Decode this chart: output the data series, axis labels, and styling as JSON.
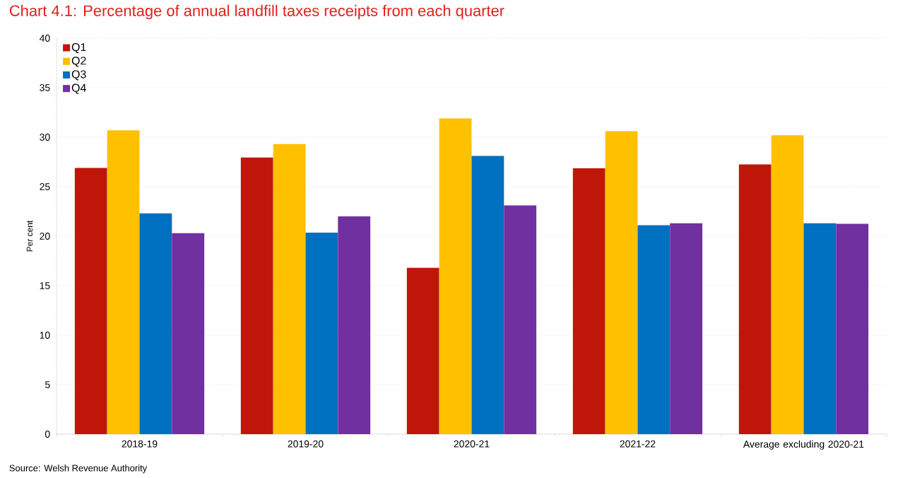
{
  "chart_data": {
    "type": "bar",
    "title": "Chart 4.1: Percentage of annual landfill taxes receipts from each quarter",
    "ylabel": "Per cent",
    "categories": [
      "2018-19",
      "2019-20",
      "2020-21",
      "2021-22",
      "Average excluding 2020-21"
    ],
    "series": [
      {
        "name": "Q1",
        "color": "#c0160a",
        "values": [
          26.9,
          27.95,
          16.8,
          26.85,
          27.25
        ]
      },
      {
        "name": "Q2",
        "color": "#ffc000",
        "values": [
          30.7,
          29.3,
          31.9,
          30.6,
          30.2
        ]
      },
      {
        "name": "Q3",
        "color": "#0070c0",
        "values": [
          22.3,
          20.35,
          28.1,
          21.1,
          21.3
        ]
      },
      {
        "name": "Q4",
        "color": "#7030a0",
        "values": [
          20.3,
          22.0,
          23.1,
          21.3,
          21.25
        ]
      }
    ],
    "ylim": [
      0,
      40
    ],
    "yticks": [
      0,
      5,
      10,
      15,
      20,
      25,
      30,
      35,
      40
    ],
    "grid": "y",
    "legend": "top left",
    "annotations": [
      "Source: Welsh Revenue Authority"
    ]
  }
}
